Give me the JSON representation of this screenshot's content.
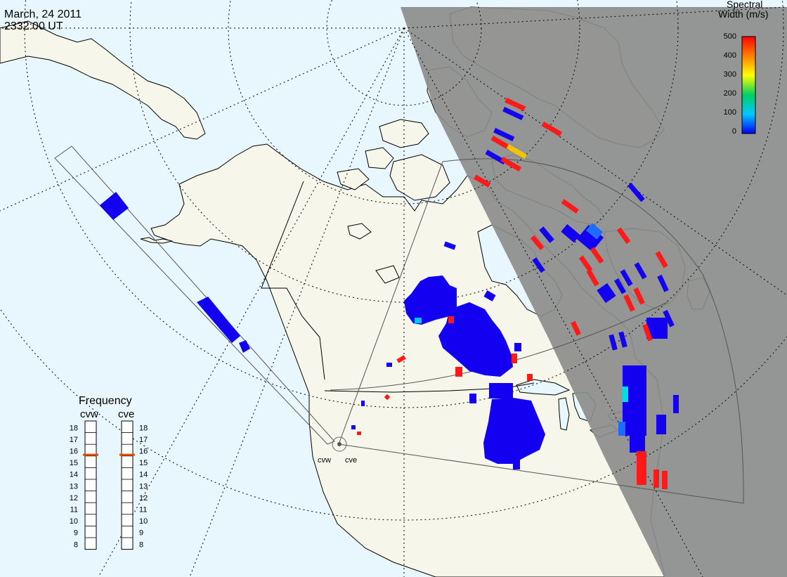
{
  "header": {
    "date": "March, 24 2011",
    "time": "2332:00 UT"
  },
  "colorbar": {
    "title_line1": "Spectral",
    "title_line2": "Width (m/s)",
    "ticks": [
      "500",
      "400",
      "300",
      "200",
      "100",
      "0"
    ],
    "min": 0,
    "max": 500,
    "unit": "m/s",
    "gradient": [
      "#0000ff",
      "#00c8ff",
      "#00d060",
      "#ffff00",
      "#ff8000",
      "#ff0000"
    ]
  },
  "frequency_panel": {
    "title": "Frequency",
    "left_label": "cvw",
    "right_label": "cve",
    "ticks": [
      "18",
      "17",
      "16",
      "15",
      "14",
      "13",
      "12",
      "11",
      "10",
      "9",
      "8"
    ],
    "cvw_mhz": 15.6,
    "cve_mhz": 15.6,
    "marker_color": "#e05000"
  },
  "radar_labels": {
    "west": "cvw",
    "east": "cve"
  },
  "colors": {
    "ocean": "#e8f6fd",
    "land": "#f6f6ea",
    "night_shade": "#8c8c8c",
    "echo_low": "#1400f0",
    "echo_high": "#ff1a1a"
  }
}
